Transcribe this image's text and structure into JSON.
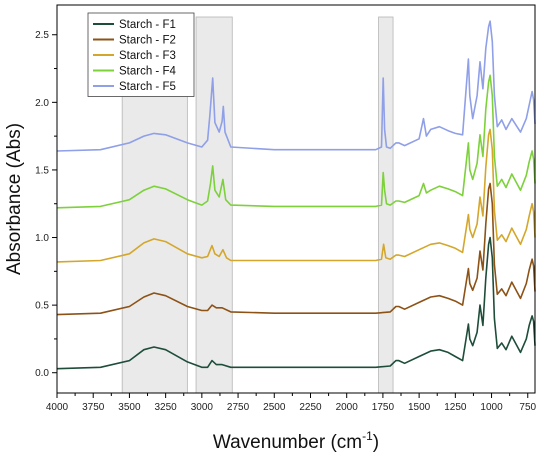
{
  "chart_data": {
    "type": "line",
    "title": "",
    "xlabel": "Wavenumber (cm",
    "xlabel_superscript": "-1",
    "xlabel_suffix": ")",
    "ylabel": "Absorbance (Abs)",
    "xlim": [
      4000,
      700
    ],
    "x_reversed": true,
    "ylim": [
      -0.15,
      2.72
    ],
    "x_ticks": [
      4000,
      3750,
      3500,
      3250,
      3000,
      2750,
      2500,
      2250,
      2000,
      1750,
      1500,
      1250,
      1000,
      750
    ],
    "x_tick_labels": [
      "4000",
      "3750",
      "3500",
      "3250",
      "3000",
      "2750",
      "2500",
      "2250",
      "2000",
      "1750",
      "1500",
      "1250",
      "1000",
      "750"
    ],
    "y_ticks": [
      0.0,
      0.5,
      1.0,
      1.5,
      2.0,
      2.5
    ],
    "y_tick_labels": [
      "0.0",
      "0.5",
      "1.0",
      "1.5",
      "2.0",
      "2.5"
    ],
    "grid": false,
    "legend_position": "top-left",
    "highlight_bands": [
      [
        3550,
        3100
      ],
      [
        3040,
        2790
      ],
      [
        1780,
        1680
      ]
    ],
    "highlight_color": "#d9d9d9",
    "series": [
      {
        "name": "Starch - F1",
        "color": "#1e4d3a",
        "points": [
          [
            4000,
            0.03
          ],
          [
            3700,
            0.04
          ],
          [
            3500,
            0.09
          ],
          [
            3400,
            0.17
          ],
          [
            3330,
            0.19
          ],
          [
            3250,
            0.17
          ],
          [
            3100,
            0.08
          ],
          [
            3000,
            0.04
          ],
          [
            2960,
            0.04
          ],
          [
            2930,
            0.09
          ],
          [
            2900,
            0.06
          ],
          [
            2860,
            0.06
          ],
          [
            2800,
            0.04
          ],
          [
            2500,
            0.04
          ],
          [
            2200,
            0.04
          ],
          [
            2000,
            0.04
          ],
          [
            1800,
            0.04
          ],
          [
            1700,
            0.05
          ],
          [
            1660,
            0.09
          ],
          [
            1640,
            0.09
          ],
          [
            1600,
            0.07
          ],
          [
            1500,
            0.12
          ],
          [
            1420,
            0.16
          ],
          [
            1360,
            0.17
          ],
          [
            1300,
            0.15
          ],
          [
            1250,
            0.12
          ],
          [
            1200,
            0.09
          ],
          [
            1160,
            0.36
          ],
          [
            1150,
            0.25
          ],
          [
            1130,
            0.2
          ],
          [
            1100,
            0.3
          ],
          [
            1080,
            0.5
          ],
          [
            1060,
            0.35
          ],
          [
            1040,
            0.7
          ],
          [
            1020,
            0.95
          ],
          [
            1010,
            1.0
          ],
          [
            995,
            0.85
          ],
          [
            980,
            0.4
          ],
          [
            960,
            0.18
          ],
          [
            930,
            0.22
          ],
          [
            900,
            0.17
          ],
          [
            860,
            0.27
          ],
          [
            800,
            0.15
          ],
          [
            760,
            0.25
          ],
          [
            740,
            0.35
          ],
          [
            720,
            0.42
          ],
          [
            710,
            0.38
          ],
          [
            700,
            0.2
          ]
        ]
      },
      {
        "name": "Starch - F2",
        "color": "#8c5216",
        "points": [
          [
            4000,
            0.43
          ],
          [
            3700,
            0.44
          ],
          [
            3500,
            0.49
          ],
          [
            3400,
            0.56
          ],
          [
            3330,
            0.59
          ],
          [
            3250,
            0.57
          ],
          [
            3100,
            0.49
          ],
          [
            3000,
            0.46
          ],
          [
            2960,
            0.46
          ],
          [
            2930,
            0.5
          ],
          [
            2900,
            0.48
          ],
          [
            2860,
            0.48
          ],
          [
            2800,
            0.45
          ],
          [
            2500,
            0.44
          ],
          [
            2200,
            0.44
          ],
          [
            2000,
            0.44
          ],
          [
            1800,
            0.44
          ],
          [
            1700,
            0.45
          ],
          [
            1660,
            0.49
          ],
          [
            1640,
            0.49
          ],
          [
            1600,
            0.47
          ],
          [
            1500,
            0.52
          ],
          [
            1420,
            0.56
          ],
          [
            1360,
            0.57
          ],
          [
            1300,
            0.55
          ],
          [
            1250,
            0.53
          ],
          [
            1200,
            0.5
          ],
          [
            1160,
            0.77
          ],
          [
            1150,
            0.66
          ],
          [
            1130,
            0.61
          ],
          [
            1100,
            0.7
          ],
          [
            1080,
            0.9
          ],
          [
            1060,
            0.76
          ],
          [
            1040,
            1.1
          ],
          [
            1020,
            1.36
          ],
          [
            1010,
            1.4
          ],
          [
            995,
            1.25
          ],
          [
            980,
            0.8
          ],
          [
            960,
            0.58
          ],
          [
            930,
            0.62
          ],
          [
            900,
            0.57
          ],
          [
            860,
            0.67
          ],
          [
            800,
            0.55
          ],
          [
            760,
            0.66
          ],
          [
            740,
            0.76
          ],
          [
            720,
            0.84
          ],
          [
            710,
            0.79
          ],
          [
            700,
            0.6
          ]
        ]
      },
      {
        "name": "Starch - F3",
        "color": "#d4a72c",
        "points": [
          [
            4000,
            0.82
          ],
          [
            3700,
            0.83
          ],
          [
            3500,
            0.88
          ],
          [
            3400,
            0.96
          ],
          [
            3330,
            0.99
          ],
          [
            3250,
            0.97
          ],
          [
            3100,
            0.88
          ],
          [
            3000,
            0.85
          ],
          [
            2960,
            0.86
          ],
          [
            2930,
            0.94
          ],
          [
            2910,
            0.88
          ],
          [
            2880,
            0.86
          ],
          [
            2855,
            0.91
          ],
          [
            2830,
            0.85
          ],
          [
            2800,
            0.83
          ],
          [
            2500,
            0.83
          ],
          [
            2200,
            0.83
          ],
          [
            2000,
            0.83
          ],
          [
            1800,
            0.83
          ],
          [
            1760,
            0.84
          ],
          [
            1745,
            0.95
          ],
          [
            1730,
            0.85
          ],
          [
            1700,
            0.84
          ],
          [
            1660,
            0.87
          ],
          [
            1640,
            0.87
          ],
          [
            1600,
            0.86
          ],
          [
            1500,
            0.91
          ],
          [
            1420,
            0.95
          ],
          [
            1360,
            0.96
          ],
          [
            1300,
            0.94
          ],
          [
            1250,
            0.92
          ],
          [
            1200,
            0.89
          ],
          [
            1160,
            1.17
          ],
          [
            1150,
            1.06
          ],
          [
            1130,
            1.0
          ],
          [
            1100,
            1.1
          ],
          [
            1080,
            1.3
          ],
          [
            1060,
            1.16
          ],
          [
            1040,
            1.52
          ],
          [
            1020,
            1.76
          ],
          [
            1010,
            1.8
          ],
          [
            995,
            1.65
          ],
          [
            980,
            1.2
          ],
          [
            960,
            0.98
          ],
          [
            930,
            1.02
          ],
          [
            900,
            0.97
          ],
          [
            860,
            1.07
          ],
          [
            800,
            0.95
          ],
          [
            760,
            1.06
          ],
          [
            740,
            1.16
          ],
          [
            720,
            1.25
          ],
          [
            710,
            1.19
          ],
          [
            700,
            1.0
          ]
        ]
      },
      {
        "name": "Starch - F4",
        "color": "#7dd13b",
        "points": [
          [
            4000,
            1.22
          ],
          [
            3700,
            1.23
          ],
          [
            3500,
            1.28
          ],
          [
            3400,
            1.35
          ],
          [
            3330,
            1.38
          ],
          [
            3250,
            1.36
          ],
          [
            3100,
            1.28
          ],
          [
            3000,
            1.24
          ],
          [
            2960,
            1.27
          ],
          [
            2940,
            1.4
          ],
          [
            2925,
            1.53
          ],
          [
            2910,
            1.35
          ],
          [
            2880,
            1.3
          ],
          [
            2855,
            1.43
          ],
          [
            2835,
            1.28
          ],
          [
            2800,
            1.24
          ],
          [
            2500,
            1.23
          ],
          [
            2200,
            1.23
          ],
          [
            2000,
            1.23
          ],
          [
            1800,
            1.23
          ],
          [
            1760,
            1.24
          ],
          [
            1748,
            1.48
          ],
          [
            1738,
            1.35
          ],
          [
            1725,
            1.25
          ],
          [
            1700,
            1.24
          ],
          [
            1660,
            1.27
          ],
          [
            1640,
            1.27
          ],
          [
            1600,
            1.26
          ],
          [
            1500,
            1.31
          ],
          [
            1470,
            1.4
          ],
          [
            1450,
            1.33
          ],
          [
            1420,
            1.35
          ],
          [
            1360,
            1.38
          ],
          [
            1300,
            1.36
          ],
          [
            1250,
            1.34
          ],
          [
            1200,
            1.31
          ],
          [
            1160,
            1.7
          ],
          [
            1150,
            1.5
          ],
          [
            1130,
            1.43
          ],
          [
            1100,
            1.55
          ],
          [
            1080,
            1.76
          ],
          [
            1060,
            1.6
          ],
          [
            1040,
            1.95
          ],
          [
            1020,
            2.15
          ],
          [
            1010,
            2.2
          ],
          [
            995,
            2.05
          ],
          [
            980,
            1.6
          ],
          [
            960,
            1.38
          ],
          [
            930,
            1.43
          ],
          [
            900,
            1.37
          ],
          [
            860,
            1.47
          ],
          [
            800,
            1.35
          ],
          [
            760,
            1.46
          ],
          [
            740,
            1.56
          ],
          [
            720,
            1.64
          ],
          [
            710,
            1.58
          ],
          [
            700,
            1.4
          ]
        ]
      },
      {
        "name": "Starch - F5",
        "color": "#8f9fe8",
        "points": [
          [
            4000,
            1.64
          ],
          [
            3700,
            1.65
          ],
          [
            3500,
            1.7
          ],
          [
            3400,
            1.75
          ],
          [
            3330,
            1.77
          ],
          [
            3250,
            1.76
          ],
          [
            3100,
            1.7
          ],
          [
            3000,
            1.67
          ],
          [
            2960,
            1.72
          ],
          [
            2945,
            1.9
          ],
          [
            2925,
            2.18
          ],
          [
            2910,
            1.85
          ],
          [
            2880,
            1.78
          ],
          [
            2860,
            1.86
          ],
          [
            2852,
            1.97
          ],
          [
            2840,
            1.78
          ],
          [
            2800,
            1.67
          ],
          [
            2500,
            1.65
          ],
          [
            2200,
            1.65
          ],
          [
            2000,
            1.65
          ],
          [
            1800,
            1.65
          ],
          [
            1760,
            1.67
          ],
          [
            1748,
            2.18
          ],
          [
            1738,
            1.8
          ],
          [
            1725,
            1.67
          ],
          [
            1700,
            1.66
          ],
          [
            1660,
            1.7
          ],
          [
            1640,
            1.7
          ],
          [
            1600,
            1.68
          ],
          [
            1500,
            1.73
          ],
          [
            1470,
            1.88
          ],
          [
            1450,
            1.75
          ],
          [
            1420,
            1.8
          ],
          [
            1360,
            1.82
          ],
          [
            1300,
            1.79
          ],
          [
            1250,
            1.77
          ],
          [
            1200,
            1.76
          ],
          [
            1160,
            2.32
          ],
          [
            1150,
            2.05
          ],
          [
            1130,
            1.88
          ],
          [
            1100,
            2.05
          ],
          [
            1080,
            2.3
          ],
          [
            1060,
            2.1
          ],
          [
            1040,
            2.4
          ],
          [
            1020,
            2.56
          ],
          [
            1010,
            2.6
          ],
          [
            995,
            2.45
          ],
          [
            980,
            2.05
          ],
          [
            960,
            1.82
          ],
          [
            930,
            1.87
          ],
          [
            900,
            1.8
          ],
          [
            860,
            1.88
          ],
          [
            800,
            1.78
          ],
          [
            760,
            1.88
          ],
          [
            740,
            1.98
          ],
          [
            720,
            2.08
          ],
          [
            710,
            2.02
          ],
          [
            700,
            1.84
          ]
        ]
      }
    ]
  }
}
